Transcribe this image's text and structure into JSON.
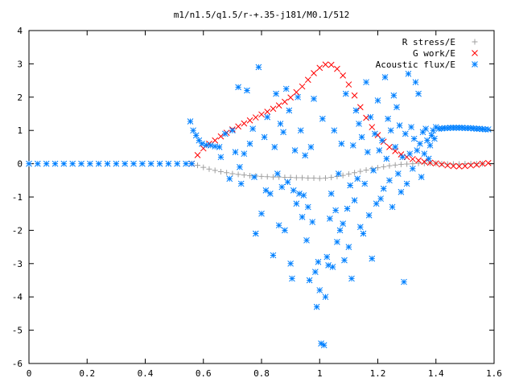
{
  "chart_data": {
    "type": "scatter",
    "title": "m1/n1.5/q1.5/r-+.35-j181/M0.1/512",
    "xlabel": "",
    "ylabel": "",
    "xlim": [
      0,
      1.6
    ],
    "ylim": [
      -6,
      4
    ],
    "x_ticks": [
      "0",
      "0.2",
      "0.4",
      "0.6",
      "0.8",
      "1",
      "1.2",
      "1.4",
      "1.6"
    ],
    "y_ticks": [
      "4",
      "3",
      "2",
      "1",
      "0",
      "-1",
      "-2",
      "-3",
      "-4",
      "-5",
      "-6"
    ],
    "grid": false,
    "legend_position": "top-right",
    "series": [
      {
        "name": "R stress/E",
        "marker": "plus",
        "color": "#a0a0a0",
        "points": [
          [
            0.56,
            0.0
          ],
          [
            0.58,
            -0.05
          ],
          [
            0.6,
            -0.11
          ],
          [
            0.62,
            -0.16
          ],
          [
            0.64,
            -0.2
          ],
          [
            0.66,
            -0.24
          ],
          [
            0.68,
            -0.27
          ],
          [
            0.7,
            -0.3
          ],
          [
            0.72,
            -0.32
          ],
          [
            0.74,
            -0.34
          ],
          [
            0.76,
            -0.36
          ],
          [
            0.78,
            -0.37
          ],
          [
            0.8,
            -0.38
          ],
          [
            0.82,
            -0.39
          ],
          [
            0.84,
            -0.4
          ],
          [
            0.86,
            -0.4
          ],
          [
            0.88,
            -0.41
          ],
          [
            0.9,
            -0.41
          ],
          [
            0.92,
            -0.42
          ],
          [
            0.94,
            -0.42
          ],
          [
            0.96,
            -0.43
          ],
          [
            0.98,
            -0.43
          ],
          [
            1.0,
            -0.44
          ],
          [
            1.02,
            -0.43
          ],
          [
            1.04,
            -0.41
          ],
          [
            1.06,
            -0.38
          ],
          [
            1.08,
            -0.35
          ],
          [
            1.1,
            -0.31
          ],
          [
            1.12,
            -0.27
          ],
          [
            1.14,
            -0.23
          ],
          [
            1.16,
            -0.19
          ],
          [
            1.18,
            -0.15
          ],
          [
            1.2,
            -0.12
          ],
          [
            1.22,
            -0.09
          ],
          [
            1.24,
            -0.06
          ],
          [
            1.26,
            -0.04
          ],
          [
            1.28,
            -0.02
          ],
          [
            1.3,
            -0.01
          ],
          [
            1.32,
            0.0
          ],
          [
            1.34,
            0.01
          ],
          [
            1.36,
            0.01
          ],
          [
            1.38,
            0.02
          ],
          [
            1.4,
            0.01
          ],
          [
            1.42,
            0.0
          ],
          [
            1.44,
            -0.01
          ],
          [
            1.46,
            -0.01
          ],
          [
            1.48,
            -0.01
          ],
          [
            1.5,
            0.0
          ],
          [
            1.52,
            0.0
          ],
          [
            1.54,
            0.0
          ],
          [
            1.56,
            0.0
          ]
        ]
      },
      {
        "name": "G work/E",
        "marker": "cross",
        "color": "#ff0000",
        "points": [
          [
            0.56,
            0.0
          ],
          [
            0.58,
            0.26
          ],
          [
            0.6,
            0.46
          ],
          [
            0.62,
            0.6
          ],
          [
            0.64,
            0.7
          ],
          [
            0.66,
            0.82
          ],
          [
            0.68,
            0.93
          ],
          [
            0.7,
            1.03
          ],
          [
            0.72,
            1.12
          ],
          [
            0.74,
            1.21
          ],
          [
            0.76,
            1.3
          ],
          [
            0.78,
            1.39
          ],
          [
            0.8,
            1.48
          ],
          [
            0.82,
            1.56
          ],
          [
            0.84,
            1.65
          ],
          [
            0.86,
            1.75
          ],
          [
            0.88,
            1.86
          ],
          [
            0.9,
            1.99
          ],
          [
            0.92,
            2.15
          ],
          [
            0.94,
            2.32
          ],
          [
            0.96,
            2.52
          ],
          [
            0.98,
            2.72
          ],
          [
            1.0,
            2.88
          ],
          [
            1.02,
            2.98
          ],
          [
            1.04,
            2.97
          ],
          [
            1.06,
            2.85
          ],
          [
            1.08,
            2.65
          ],
          [
            1.1,
            2.38
          ],
          [
            1.12,
            2.05
          ],
          [
            1.14,
            1.7
          ],
          [
            1.16,
            1.38
          ],
          [
            1.18,
            1.1
          ],
          [
            1.2,
            0.86
          ],
          [
            1.22,
            0.66
          ],
          [
            1.24,
            0.5
          ],
          [
            1.26,
            0.38
          ],
          [
            1.28,
            0.28
          ],
          [
            1.3,
            0.2
          ],
          [
            1.32,
            0.14
          ],
          [
            1.34,
            0.1
          ],
          [
            1.36,
            0.06
          ],
          [
            1.38,
            0.03
          ],
          [
            1.4,
            0.01
          ],
          [
            1.42,
            -0.02
          ],
          [
            1.44,
            -0.05
          ],
          [
            1.46,
            -0.07
          ],
          [
            1.48,
            -0.08
          ],
          [
            1.5,
            -0.07
          ],
          [
            1.52,
            -0.05
          ],
          [
            1.54,
            -0.03
          ],
          [
            1.56,
            0.0
          ],
          [
            1.58,
            0.02
          ]
        ]
      },
      {
        "name": "Acoustic flux/E",
        "marker": "star",
        "color": "#0080ff",
        "points": [
          [
            0.0,
            0.0
          ],
          [
            0.03,
            0.0
          ],
          [
            0.06,
            0.0
          ],
          [
            0.09,
            0.0
          ],
          [
            0.12,
            0.0
          ],
          [
            0.15,
            0.0
          ],
          [
            0.18,
            0.0
          ],
          [
            0.21,
            0.0
          ],
          [
            0.24,
            0.0
          ],
          [
            0.27,
            0.0
          ],
          [
            0.3,
            0.0
          ],
          [
            0.33,
            0.0
          ],
          [
            0.36,
            0.0
          ],
          [
            0.39,
            0.0
          ],
          [
            0.42,
            0.0
          ],
          [
            0.45,
            0.0
          ],
          [
            0.48,
            0.0
          ],
          [
            0.51,
            0.0
          ],
          [
            0.54,
            0.0
          ],
          [
            0.56,
            0.0
          ],
          [
            0.555,
            1.27
          ],
          [
            0.565,
            1.0
          ],
          [
            0.575,
            0.85
          ],
          [
            0.585,
            0.7
          ],
          [
            0.595,
            0.6
          ],
          [
            0.61,
            0.56
          ],
          [
            0.625,
            0.55
          ],
          [
            0.64,
            0.52
          ],
          [
            0.655,
            0.5
          ],
          [
            0.66,
            0.2
          ],
          [
            0.675,
            0.9
          ],
          [
            0.69,
            -0.45
          ],
          [
            0.7,
            1.0
          ],
          [
            0.71,
            0.35
          ],
          [
            0.72,
            2.3
          ],
          [
            0.725,
            -0.1
          ],
          [
            0.73,
            -0.6
          ],
          [
            0.74,
            0.3
          ],
          [
            0.75,
            2.2
          ],
          [
            0.76,
            0.6
          ],
          [
            0.77,
            1.05
          ],
          [
            0.775,
            -0.4
          ],
          [
            0.78,
            -2.1
          ],
          [
            0.79,
            2.9
          ],
          [
            0.8,
            -1.5
          ],
          [
            0.81,
            0.8
          ],
          [
            0.815,
            -0.8
          ],
          [
            0.82,
            1.4
          ],
          [
            0.83,
            -0.9
          ],
          [
            0.84,
            -2.75
          ],
          [
            0.845,
            0.5
          ],
          [
            0.85,
            2.1
          ],
          [
            0.855,
            -0.3
          ],
          [
            0.86,
            -1.85
          ],
          [
            0.865,
            1.2
          ],
          [
            0.87,
            -0.7
          ],
          [
            0.875,
            0.95
          ],
          [
            0.88,
            -2.0
          ],
          [
            0.885,
            2.25
          ],
          [
            0.89,
            -0.55
          ],
          [
            0.895,
            1.6
          ],
          [
            0.9,
            -3.0
          ],
          [
            0.905,
            -3.45
          ],
          [
            0.91,
            -0.8
          ],
          [
            0.915,
            0.4
          ],
          [
            0.92,
            -1.2
          ],
          [
            0.925,
            2.0
          ],
          [
            0.93,
            -0.9
          ],
          [
            0.935,
            1.0
          ],
          [
            0.94,
            -1.6
          ],
          [
            0.945,
            -0.95
          ],
          [
            0.95,
            0.25
          ],
          [
            0.955,
            -2.3
          ],
          [
            0.96,
            -1.3
          ],
          [
            0.965,
            -3.5
          ],
          [
            0.97,
            0.5
          ],
          [
            0.975,
            -1.75
          ],
          [
            0.98,
            1.95
          ],
          [
            0.985,
            -3.25
          ],
          [
            0.99,
            -4.3
          ],
          [
            0.995,
            -2.95
          ],
          [
            1.0,
            -3.8
          ],
          [
            1.005,
            -5.4
          ],
          [
            1.01,
            1.35
          ],
          [
            1.015,
            -5.45
          ],
          [
            1.02,
            -4.0
          ],
          [
            1.025,
            -2.8
          ],
          [
            1.03,
            -3.05
          ],
          [
            1.035,
            -1.65
          ],
          [
            1.04,
            -0.9
          ],
          [
            1.045,
            -3.1
          ],
          [
            1.05,
            1.0
          ],
          [
            1.055,
            -1.4
          ],
          [
            1.06,
            -2.35
          ],
          [
            1.065,
            -0.3
          ],
          [
            1.07,
            -2.0
          ],
          [
            1.075,
            0.6
          ],
          [
            1.08,
            -1.8
          ],
          [
            1.085,
            -2.9
          ],
          [
            1.09,
            2.1
          ],
          [
            1.095,
            -1.35
          ],
          [
            1.1,
            -2.5
          ],
          [
            1.105,
            -0.65
          ],
          [
            1.11,
            -3.45
          ],
          [
            1.115,
            0.55
          ],
          [
            1.12,
            -1.1
          ],
          [
            1.125,
            1.6
          ],
          [
            1.13,
            -0.45
          ],
          [
            1.135,
            1.2
          ],
          [
            1.14,
            -1.9
          ],
          [
            1.145,
            0.8
          ],
          [
            1.15,
            -2.1
          ],
          [
            1.155,
            -0.6
          ],
          [
            1.16,
            2.45
          ],
          [
            1.165,
            0.35
          ],
          [
            1.17,
            -1.55
          ],
          [
            1.175,
            1.4
          ],
          [
            1.18,
            -2.85
          ],
          [
            1.185,
            -0.2
          ],
          [
            1.19,
            0.9
          ],
          [
            1.195,
            -1.2
          ],
          [
            1.2,
            1.9
          ],
          [
            1.205,
            0.4
          ],
          [
            1.21,
            -1.05
          ],
          [
            1.215,
            0.7
          ],
          [
            1.22,
            -0.75
          ],
          [
            1.225,
            2.6
          ],
          [
            1.23,
            0.15
          ],
          [
            1.235,
            1.35
          ],
          [
            1.24,
            -0.5
          ],
          [
            1.245,
            1.0
          ],
          [
            1.25,
            -1.3
          ],
          [
            1.255,
            2.05
          ],
          [
            1.26,
            0.5
          ],
          [
            1.265,
            1.7
          ],
          [
            1.27,
            -0.3
          ],
          [
            1.275,
            1.15
          ],
          [
            1.28,
            -0.85
          ],
          [
            1.285,
            0.2
          ],
          [
            1.29,
            -3.55
          ],
          [
            1.295,
            0.9
          ],
          [
            1.3,
            -0.6
          ],
          [
            1.305,
            2.7
          ],
          [
            1.31,
            0.3
          ],
          [
            1.315,
            1.1
          ],
          [
            1.32,
            -0.15
          ],
          [
            1.325,
            0.75
          ],
          [
            1.33,
            2.45
          ],
          [
            1.335,
            0.4
          ],
          [
            1.34,
            2.1
          ],
          [
            1.345,
            0.6
          ],
          [
            1.35,
            -0.4
          ],
          [
            1.355,
            0.95
          ],
          [
            1.36,
            0.3
          ],
          [
            1.365,
            1.05
          ],
          [
            1.37,
            0.7
          ],
          [
            1.375,
            0.15
          ],
          [
            1.38,
            0.55
          ],
          [
            1.385,
            0.85
          ],
          [
            1.39,
            1.0
          ],
          [
            1.395,
            0.75
          ],
          [
            1.4,
            1.1
          ],
          [
            1.41,
            1.05
          ],
          [
            1.42,
            1.06
          ],
          [
            1.43,
            1.07
          ],
          [
            1.44,
            1.07
          ],
          [
            1.45,
            1.08
          ],
          [
            1.46,
            1.08
          ],
          [
            1.47,
            1.08
          ],
          [
            1.48,
            1.08
          ],
          [
            1.49,
            1.08
          ],
          [
            1.5,
            1.07
          ],
          [
            1.51,
            1.07
          ],
          [
            1.52,
            1.07
          ],
          [
            1.53,
            1.06
          ],
          [
            1.54,
            1.05
          ],
          [
            1.55,
            1.05
          ],
          [
            1.56,
            1.04
          ],
          [
            1.57,
            1.03
          ],
          [
            1.58,
            1.03
          ]
        ]
      }
    ]
  }
}
